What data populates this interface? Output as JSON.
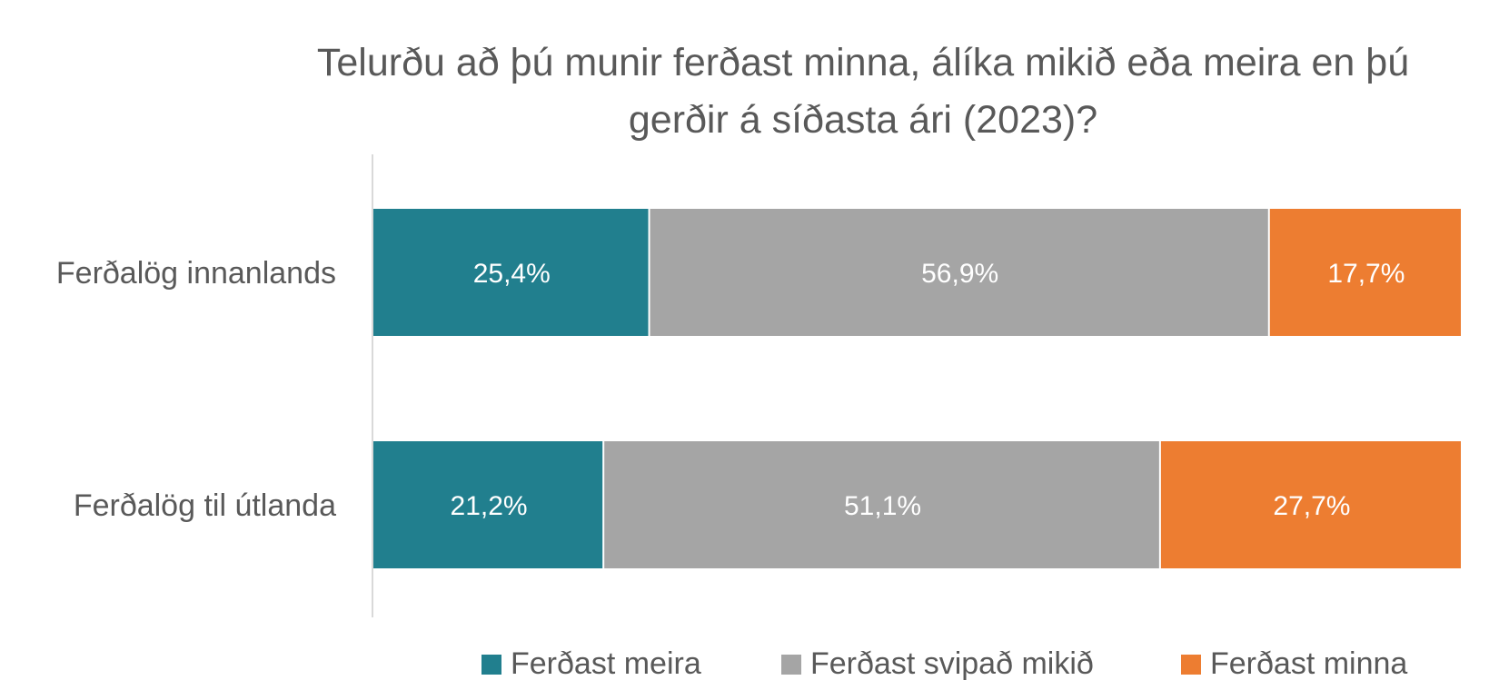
{
  "chart_data": {
    "type": "bar",
    "orientation": "horizontal",
    "stacked": true,
    "title": "Telurðu að þú munir ferðast minna, álíka mikið eða meira en þú gerðir á síðasta ári (2023)?",
    "categories": [
      "Ferðalög innanlands",
      "Ferðalög til útlanda"
    ],
    "series": [
      {
        "name": "Ferðast meira",
        "values": [
          25.4,
          21.2
        ],
        "labels": [
          "25,4%",
          "21,2%"
        ],
        "color": "#217f8e"
      },
      {
        "name": "Ferðast svipað mikið",
        "values": [
          56.9,
          51.1
        ],
        "labels": [
          "56,9%",
          "51,1%"
        ],
        "color": "#a5a5a5"
      },
      {
        "name": "Ferðast minna",
        "values": [
          17.7,
          27.7
        ],
        "labels": [
          "17,7%",
          "27,7%"
        ],
        "color": "#ed7d31"
      }
    ],
    "xlim": [
      0,
      100
    ],
    "grid": false,
    "legend_position": "bottom"
  }
}
